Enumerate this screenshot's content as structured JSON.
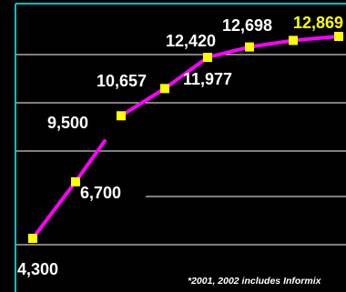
{
  "chart_data": {
    "type": "line",
    "series": [
      {
        "values": [
          4300,
          6700,
          9500,
          10657,
          11977,
          12420,
          12698,
          12869
        ],
        "labels": [
          "4,300",
          "6,700",
          "9,500",
          "10,657",
          "11,977",
          "12,420",
          "12,698",
          "12,869"
        ]
      }
    ],
    "grid": true,
    "colors": {
      "background": "#000000",
      "line": "#ff00ff",
      "marker": "#ffff00",
      "gridline": "#ffffff",
      "frame": "#00c0c0",
      "label": "#ffffff",
      "highlight_label": "#ffff00"
    }
  },
  "footnote": "*2001, 2002 includes Informix"
}
